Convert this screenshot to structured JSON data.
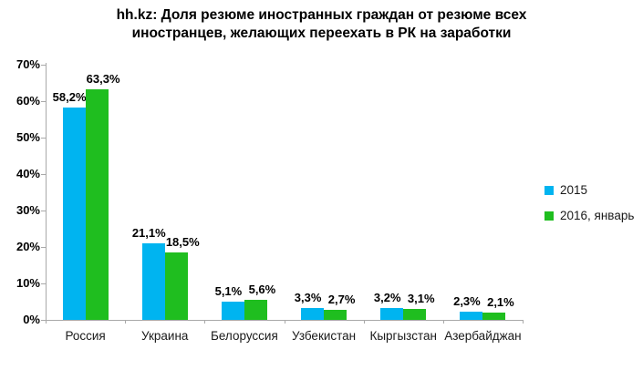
{
  "chart_data": {
    "type": "bar",
    "title": "hh.kz: Доля резюме иностранных граждан от резюме всех иностранцев, желающих переехать в РК на заработки",
    "title_lines": [
      "hh.kz: Доля резюме иностранных граждан от резюме всех",
      "иностранцев, желающих переехать в РК на заработки"
    ],
    "categories": [
      "Россия",
      "Украина",
      "Белоруссия",
      "Узбекистан",
      "Кыргызстан",
      "Азербайджан"
    ],
    "series": [
      {
        "name": "2015",
        "color": "#00b4f0",
        "values": [
          58.2,
          21.1,
          5.1,
          3.3,
          3.2,
          2.3
        ],
        "labels": [
          "58,2%",
          "21,1%",
          "5,1%",
          "3,3%",
          "3,2%",
          "2,3%"
        ]
      },
      {
        "name": "2016, январь",
        "color": "#1fbe1f",
        "values": [
          63.3,
          18.5,
          5.6,
          2.7,
          3.1,
          2.1
        ],
        "labels": [
          "63,3%",
          "18,5%",
          "5,6%",
          "2,7%",
          "3,1%",
          "2,1%"
        ]
      }
    ],
    "xlabel": "",
    "ylabel": "",
    "ylim": [
      0,
      70
    ],
    "ytick_step": 10,
    "ytick_labels": [
      "0%",
      "10%",
      "20%",
      "30%",
      "40%",
      "50%",
      "60%",
      "70%"
    ],
    "grid": false,
    "legend_position": "right",
    "axis_color": "#a9a9a9"
  }
}
